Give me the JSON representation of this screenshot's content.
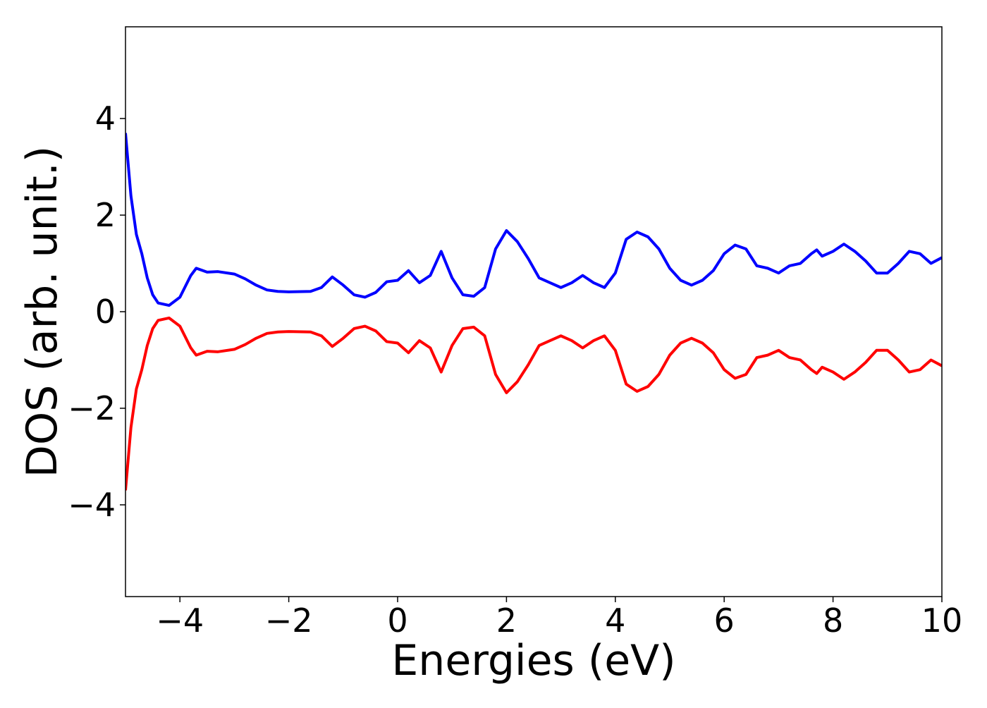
{
  "chart_data": {
    "type": "line",
    "xlabel": "Energies (eV)",
    "ylabel": "DOS (arb. unit.)",
    "x": [
      -5.0,
      -4.9,
      -4.8,
      -4.7,
      -4.6,
      -4.5,
      -4.4,
      -4.2,
      -4.0,
      -3.8,
      -3.7,
      -3.5,
      -3.3,
      -3.0,
      -2.8,
      -2.6,
      -2.4,
      -2.2,
      -2.0,
      -1.6,
      -1.4,
      -1.2,
      -1.0,
      -0.8,
      -0.6,
      -0.4,
      -0.2,
      0.0,
      0.2,
      0.4,
      0.6,
      0.8,
      1.0,
      1.2,
      1.4,
      1.6,
      1.8,
      2.0,
      2.2,
      2.4,
      2.6,
      2.8,
      3.0,
      3.2,
      3.4,
      3.6,
      3.8,
      4.0,
      4.2,
      4.4,
      4.6,
      4.8,
      5.0,
      5.2,
      5.4,
      5.6,
      5.8,
      6.0,
      6.2,
      6.4,
      6.6,
      6.8,
      7.0,
      7.2,
      7.4,
      7.6,
      7.7,
      7.8,
      8.0,
      8.2,
      8.4,
      8.6,
      8.8,
      9.0,
      9.2,
      9.4,
      9.6,
      9.8,
      10.0
    ],
    "series": [
      {
        "color": "#0000ff",
        "values": [
          3.7,
          2.4,
          1.6,
          1.2,
          0.7,
          0.35,
          0.18,
          0.13,
          0.3,
          0.75,
          0.9,
          0.82,
          0.83,
          0.78,
          0.68,
          0.55,
          0.45,
          0.42,
          0.41,
          0.42,
          0.5,
          0.72,
          0.55,
          0.35,
          0.3,
          0.4,
          0.62,
          0.65,
          0.85,
          0.6,
          0.75,
          1.25,
          0.7,
          0.35,
          0.32,
          0.5,
          1.3,
          1.68,
          1.45,
          1.1,
          0.7,
          0.6,
          0.5,
          0.6,
          0.75,
          0.6,
          0.5,
          0.8,
          1.5,
          1.65,
          1.55,
          1.3,
          0.9,
          0.65,
          0.55,
          0.65,
          0.85,
          1.2,
          1.38,
          1.3,
          0.95,
          0.9,
          0.8,
          0.95,
          1.0,
          1.2,
          1.28,
          1.15,
          1.25,
          1.4,
          1.25,
          1.05,
          0.8,
          0.8,
          1.0,
          1.25,
          1.2,
          1.0,
          1.12
        ]
      },
      {
        "color": "#ff0000",
        "values": [
          -3.7,
          -2.4,
          -1.6,
          -1.2,
          -0.7,
          -0.35,
          -0.18,
          -0.13,
          -0.3,
          -0.75,
          -0.9,
          -0.82,
          -0.83,
          -0.78,
          -0.68,
          -0.55,
          -0.45,
          -0.42,
          -0.41,
          -0.42,
          -0.5,
          -0.72,
          -0.55,
          -0.35,
          -0.3,
          -0.4,
          -0.62,
          -0.65,
          -0.85,
          -0.6,
          -0.75,
          -1.25,
          -0.7,
          -0.35,
          -0.32,
          -0.5,
          -1.3,
          -1.68,
          -1.45,
          -1.1,
          -0.7,
          -0.6,
          -0.5,
          -0.6,
          -0.75,
          -0.6,
          -0.5,
          -0.8,
          -1.5,
          -1.65,
          -1.55,
          -1.3,
          -0.9,
          -0.65,
          -0.55,
          -0.65,
          -0.85,
          -1.2,
          -1.38,
          -1.3,
          -0.95,
          -0.9,
          -0.8,
          -0.95,
          -1.0,
          -1.2,
          -1.28,
          -1.15,
          -1.25,
          -1.4,
          -1.25,
          -1.05,
          -0.8,
          -0.8,
          -1.0,
          -1.25,
          -1.2,
          -1.0,
          -1.12
        ]
      }
    ],
    "xlim": [
      -5,
      10
    ],
    "xticks": [
      {
        "value": -4,
        "label": "−4"
      },
      {
        "value": -2,
        "label": "−2"
      },
      0,
      2,
      4,
      6,
      8,
      10
    ],
    "ylim": [
      -5.9,
      5.9
    ],
    "yticks": [
      {
        "value": -4,
        "label": "−4"
      },
      {
        "value": -2,
        "label": "−2"
      },
      0,
      2,
      4
    ],
    "grid": false
  }
}
